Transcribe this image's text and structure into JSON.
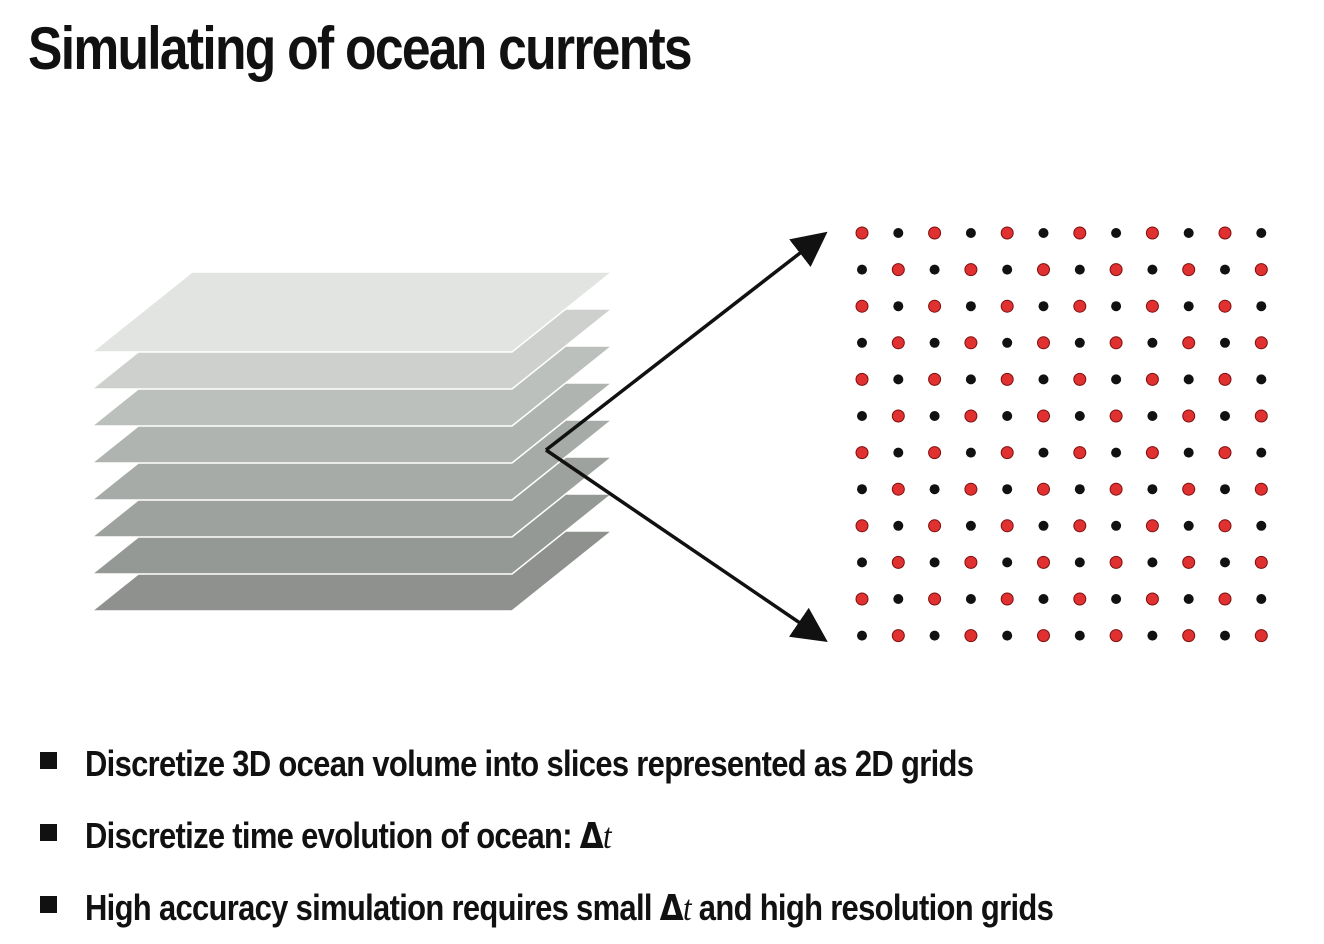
{
  "title": "Simulating of ocean currents",
  "diagram": {
    "slice_count": 8,
    "slice_colors": [
      "#e2e4e2",
      "#cdd0cd",
      "#bcc0bc",
      "#b0b4b0",
      "#a7aba7",
      "#9ea29e",
      "#959995",
      "#8e918e"
    ],
    "grid": {
      "rows": 12,
      "cols": 12,
      "colors": {
        "red": "#e03030",
        "black": "#111111"
      },
      "pattern": "checkerboard; red where (row + col) is even"
    }
  },
  "bullets": [
    {
      "parts": [
        {
          "text": "Discretize 3D ocean volume into slices represented as 2D grids"
        }
      ]
    },
    {
      "parts": [
        {
          "text": "Discretize time evolution of ocean: "
        },
        {
          "text": "Δ",
          "cls": "delta"
        },
        {
          "text": "t",
          "cls": "tvar"
        }
      ]
    },
    {
      "parts": [
        {
          "text": "High accuracy simulation requires small "
        },
        {
          "text": "Δ",
          "cls": "delta"
        },
        {
          "text": "t",
          "cls": "tvar"
        },
        {
          "text": " and high resolution grids"
        }
      ]
    }
  ]
}
